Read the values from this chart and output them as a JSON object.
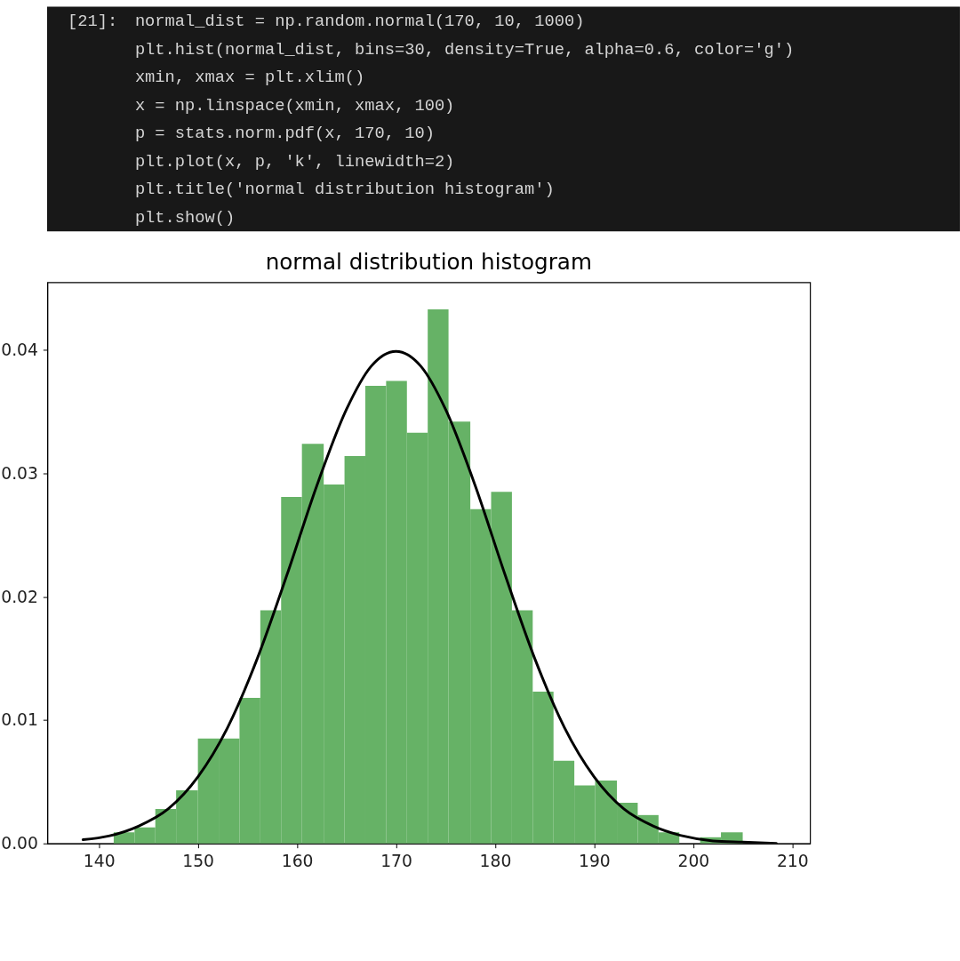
{
  "chart_data": {
    "type": "histogram",
    "title": "normal distribution histogram",
    "annotations": [
      "[21]:",
      "normal_dist = np.random.normal(170, 10, 1000)",
      "plt.hist(normal_dist, bins=30, density=True, alpha=0.6, color='g')",
      "xmin, xmax = plt.xlim()",
      "x = np.linspace(xmin, xmax, 100)",
      "p = stats.norm.pdf(x, 170, 10)",
      "plt.plot(x, p, 'k', linewidth=2)",
      "plt.title('normal distribution histogram')",
      "plt.show()"
    ],
    "bins": [
      141.5,
      143.6,
      145.7,
      147.8,
      150.0,
      152.1,
      154.2,
      156.3,
      158.4,
      160.5,
      162.7,
      164.8,
      166.9,
      169.0,
      171.1,
      173.2,
      175.3,
      177.5,
      179.6,
      181.7,
      183.8,
      185.9,
      188.0,
      190.1,
      192.3,
      194.4,
      196.5,
      198.6,
      200.7,
      202.8,
      205.0
    ],
    "values": [
      0.0009,
      0.0013,
      0.0028,
      0.0043,
      0.0085,
      0.0085,
      0.0118,
      0.0189,
      0.0281,
      0.0324,
      0.0291,
      0.0314,
      0.0371,
      0.0375,
      0.0333,
      0.0433,
      0.0342,
      0.0271,
      0.0285,
      0.0189,
      0.0123,
      0.0067,
      0.0047,
      0.0051,
      0.0033,
      0.0023,
      0.0009,
      0,
      0.0005,
      0.0009
    ],
    "color": "#66b266",
    "series": [
      {
        "type": "line",
        "color": "#000000",
        "x": [
          138.4,
          141,
          144,
          147,
          150,
          153,
          156,
          159,
          162,
          165,
          167.5,
          170,
          172.5,
          175,
          178,
          181,
          184,
          187,
          190,
          193,
          196,
          199,
          202,
          205,
          208.4
        ],
        "values": [
          0.0003,
          0.0006,
          0.0014,
          0.0028,
          0.0054,
          0.0094,
          0.015,
          0.0218,
          0.029,
          0.0352,
          0.0387,
          0.0399,
          0.0387,
          0.0352,
          0.029,
          0.0218,
          0.015,
          0.0094,
          0.0054,
          0.0028,
          0.0014,
          0.0006,
          0.0002,
          0.0001,
          0.0
        ]
      }
    ],
    "xlim": [
      134.8,
      211.8
    ],
    "ylim": [
      0,
      0.0455
    ],
    "xticks": [
      140,
      150,
      160,
      170,
      180,
      190,
      200,
      210
    ],
    "yticks": [
      {
        "value": 0,
        "label": "0.00"
      },
      {
        "value": 0.01,
        "label": "0.01"
      },
      {
        "value": 0.02,
        "label": "0.02"
      },
      {
        "value": 0.03,
        "label": "0.03"
      },
      {
        "value": 0.04,
        "label": "0.04"
      }
    ],
    "grid": false
  }
}
